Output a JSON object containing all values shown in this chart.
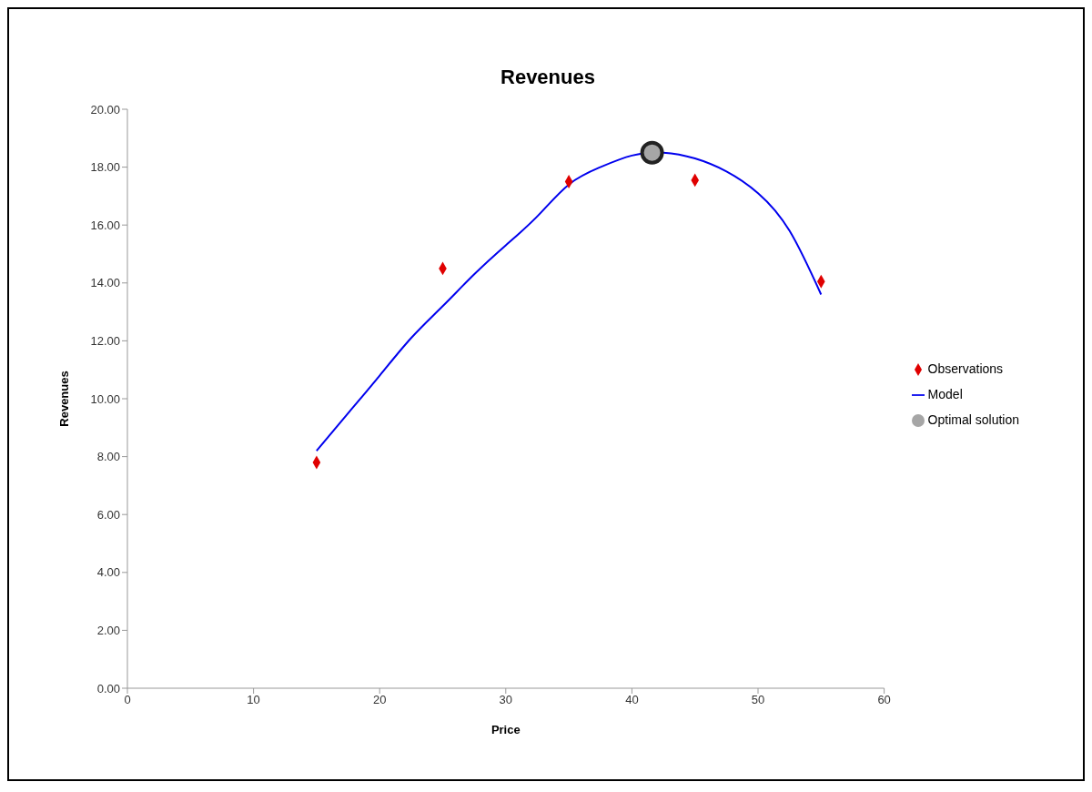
{
  "chart_data": {
    "type": "scatter",
    "title": "Revenues",
    "xlabel": "Price",
    "ylabel": "Revenues",
    "xlim": [
      0,
      60
    ],
    "xticks": [
      0,
      10,
      20,
      30,
      40,
      50,
      60
    ],
    "ylim": [
      0,
      20
    ],
    "yticks": [
      {
        "value": 0,
        "label": "0.00"
      },
      {
        "value": 2,
        "label": "2.00"
      },
      {
        "value": 4,
        "label": "4.00"
      },
      {
        "value": 6,
        "label": "6.00"
      },
      {
        "value": 8,
        "label": "8.00"
      },
      {
        "value": 10,
        "label": "10.00"
      },
      {
        "value": 12,
        "label": "12.00"
      },
      {
        "value": 14,
        "label": "14.00"
      },
      {
        "value": 16,
        "label": "16.00"
      },
      {
        "value": 18,
        "label": "18.00"
      },
      {
        "value": 20,
        "label": "20.00"
      }
    ],
    "grid": false,
    "legend": "right",
    "series": [
      {
        "name": "Observations",
        "marker": "diamond",
        "color": "#e00000",
        "x": [
          15,
          25,
          35,
          45,
          55
        ],
        "values": [
          7.8,
          14.5,
          17.5,
          17.55,
          14.05
        ]
      },
      {
        "name": "Model",
        "type": "line",
        "marker": "none",
        "line_style": "solid",
        "color": "#0000ee",
        "x": [
          15,
          17.5,
          20,
          22.5,
          25,
          27.5,
          30,
          32.5,
          35,
          37.5,
          40,
          42.5,
          45,
          47.5,
          50,
          52.5,
          55
        ],
        "values": [
          8.2,
          9.5,
          10.8,
          12.1,
          13.2,
          14.3,
          15.3,
          16.3,
          17.4,
          18.0,
          18.4,
          18.5,
          18.3,
          17.85,
          17.1,
          15.8,
          13.6
        ]
      },
      {
        "name": "Optimal solution",
        "marker": "circle",
        "color": "#a6a6a6",
        "x": [
          41.6
        ],
        "values": [
          18.5
        ]
      }
    ]
  }
}
